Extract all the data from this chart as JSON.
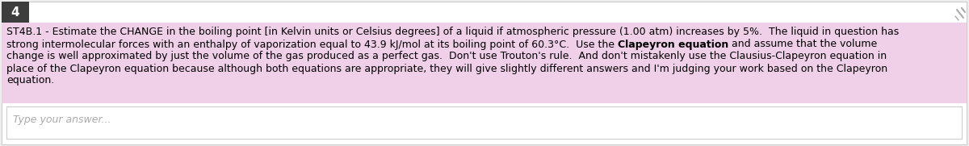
{
  "number": "4",
  "number_bg": "#3d3d3d",
  "number_color": "#ffffff",
  "highlight_color": "#f0d0e8",
  "border_color": "#cccccc",
  "bg_color": "#ffffff",
  "outer_bg": "#eeeeee",
  "pin_color": "#aaaaaa",
  "placeholder": "Type your answer...",
  "line1": "ST4B.1 - Estimate the CHANGE in the boiling point [in Kelvin units or Celsius degrees] of a liquid if atmospheric pressure (1.00 atm) increases by 5%.  The liquid in question has",
  "line2_pre": "strong intermolecular forces with an enthalpy of vaporization equal to 43.9 kJ/mol at its boiling point of 60.3°C.  Use the ",
  "line2_bold": "Clapeyron equation",
  "line2_post": " and assume that the volume",
  "line3": "change is well approximated by just the volume of the gas produced as a perfect gas.  Don't use Trouton's rule.  And don't mistakenly use the Clausius-Clapeyron equation in",
  "line4": "place of the Clapeyron equation because although both equations are appropriate, they will give slightly different answers and I'm judging your work based on the Clapeyron",
  "line5": "equation.",
  "font_size": 9.0,
  "num_fontsize": 11
}
